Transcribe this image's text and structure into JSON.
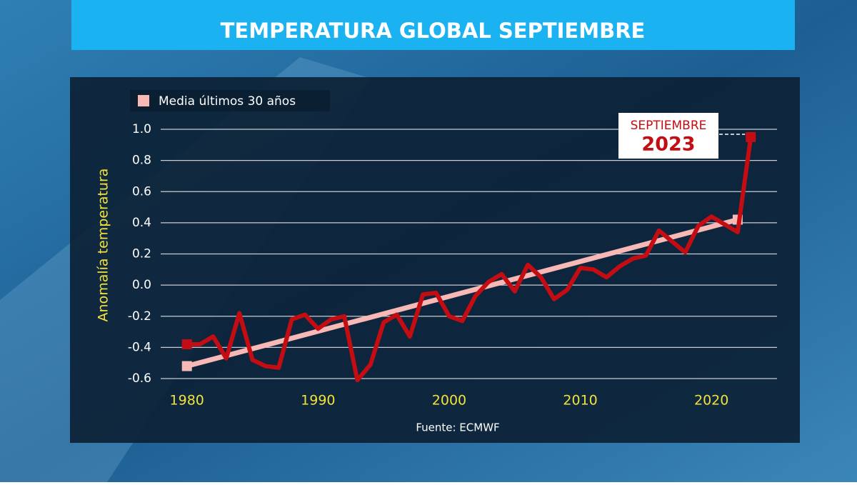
{
  "chart_data": {
    "type": "line",
    "title": "TEMPERATURA GLOBAL SEPTIEMBRE",
    "y_label": "Anomalía temperatura",
    "source": "Fuente: ECMWF",
    "annotation": [
      "SEPTIEMBRE",
      "2023"
    ],
    "x": [
      1980,
      1981,
      1982,
      1983,
      1984,
      1985,
      1986,
      1987,
      1988,
      1989,
      1990,
      1991,
      1992,
      1993,
      1994,
      1995,
      1996,
      1997,
      1998,
      1999,
      2000,
      2001,
      2002,
      2003,
      2004,
      2005,
      2006,
      2007,
      2008,
      2009,
      2010,
      2011,
      2012,
      2013,
      2014,
      2015,
      2016,
      2017,
      2018,
      2019,
      2020,
      2021,
      2022,
      2023
    ],
    "series": [
      {
        "color": "#c40d12",
        "values": [
          -0.38,
          -0.38,
          -0.33,
          -0.47,
          -0.18,
          -0.48,
          -0.52,
          -0.53,
          -0.22,
          -0.19,
          -0.28,
          -0.22,
          -0.2,
          -0.61,
          -0.51,
          -0.24,
          -0.19,
          -0.33,
          -0.06,
          -0.05,
          -0.2,
          -0.23,
          -0.07,
          0.02,
          0.07,
          -0.04,
          0.13,
          0.05,
          -0.09,
          -0.03,
          0.11,
          0.1,
          0.05,
          0.12,
          0.17,
          0.19,
          0.35,
          0.28,
          0.21,
          0.38,
          0.44,
          0.39,
          0.34,
          0.95
        ]
      }
    ],
    "trend": {
      "name": "Media últimos 30 años",
      "color": "#f7b8b6",
      "x": [
        1980,
        2022
      ],
      "values": [
        -0.52,
        0.42
      ]
    },
    "xlim": [
      1978,
      2025
    ],
    "xticks": [
      1980,
      1990,
      2000,
      2010,
      2020
    ],
    "ylim": [
      -0.6,
      1.0
    ],
    "yticks": [
      -0.6,
      -0.4,
      -0.2,
      {
        "value": 0,
        "label": "0.0"
      },
      0.2,
      0.4,
      0.6,
      0.8,
      {
        "value": 1,
        "label": "1.0"
      }
    ],
    "grid": true
  }
}
